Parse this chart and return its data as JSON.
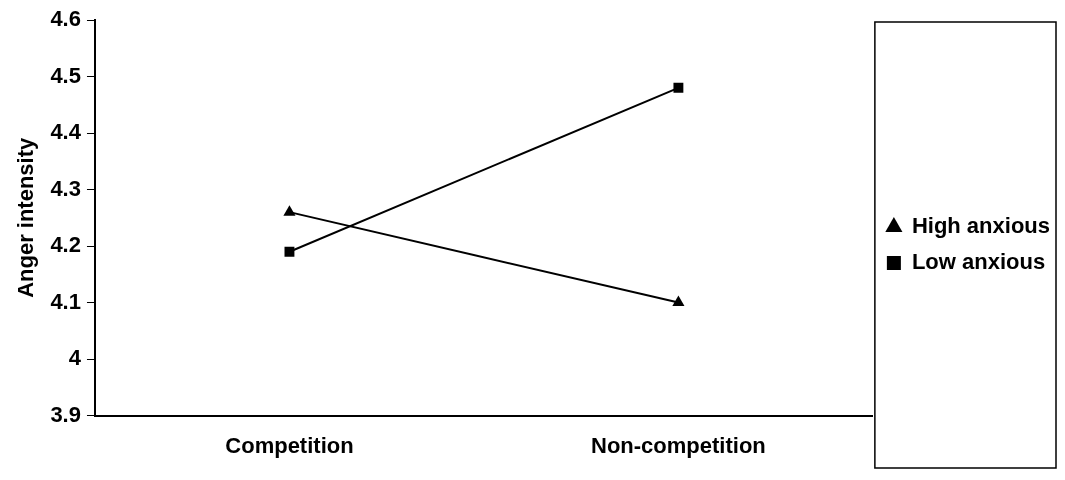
{
  "chart_data": {
    "type": "line",
    "ylabel": "Anger intensity",
    "categories": [
      "Competition",
      "Non-competition"
    ],
    "series": [
      {
        "name": "High anxious",
        "color": "#000000",
        "marker": "triangle",
        "values": [
          4.26,
          4.1
        ]
      },
      {
        "name": "Low anxious",
        "color": "#000000",
        "marker": "square",
        "values": [
          4.19,
          4.48
        ]
      }
    ],
    "ylim": [
      3.9,
      4.6
    ],
    "yticks": [
      3.9,
      4,
      4.1,
      4.2,
      4.3,
      4.4,
      4.5,
      4.6
    ],
    "grid": false,
    "legend": "right",
    "line_style": "solid"
  }
}
